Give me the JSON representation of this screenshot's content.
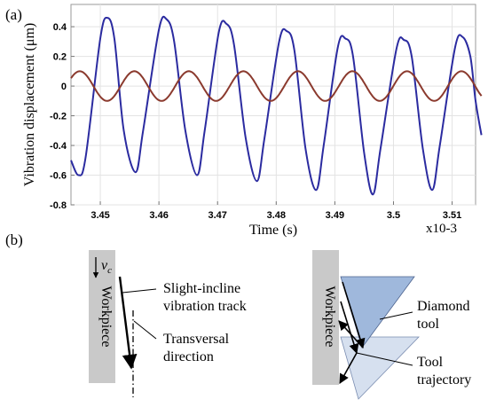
{
  "panel_a": {
    "label": "(a)"
  },
  "panel_b": {
    "label": "(b)"
  },
  "chart_data": {
    "type": "line",
    "title": "",
    "xlabel": "Time (s)",
    "ylabel": "Vibration displacement (μm)",
    "x_multiplier": "x10-3",
    "xlim": [
      3.445,
      3.514
    ],
    "ylim": [
      -0.8,
      0.55
    ],
    "grid": true,
    "xticks": [
      3.45,
      3.46,
      3.47,
      3.48,
      3.49,
      3.5,
      3.51
    ],
    "xtick_labels": [
      "3.45",
      "3.46",
      "3.47",
      "3.48",
      "3.49",
      "3.5",
      "3.51"
    ],
    "yticks": [
      0.4,
      0.2,
      0,
      -0.2,
      -0.4,
      -0.6,
      -0.8
    ],
    "ytick_labels": [
      "0.4",
      "0.2",
      "0",
      "-0.2",
      "-0.4",
      "-0.6",
      "-0.8"
    ],
    "series": [
      {
        "color": "#2b2ba0",
        "points": [
          [
            3.445,
            -0.5
          ],
          [
            3.4463,
            -0.6
          ],
          [
            3.4475,
            -0.48
          ],
          [
            3.45,
            0.32
          ],
          [
            3.4512,
            0.46
          ],
          [
            3.4524,
            0.32
          ],
          [
            3.454,
            -0.3
          ],
          [
            3.456,
            -0.58
          ],
          [
            3.4573,
            -0.3
          ],
          [
            3.46,
            0.38
          ],
          [
            3.4613,
            0.45
          ],
          [
            3.4626,
            0.3
          ],
          [
            3.4645,
            -0.3
          ],
          [
            3.4665,
            -0.6
          ],
          [
            3.4678,
            -0.3
          ],
          [
            3.4702,
            0.36
          ],
          [
            3.4715,
            0.42
          ],
          [
            3.4728,
            0.28
          ],
          [
            3.4748,
            -0.35
          ],
          [
            3.4767,
            -0.64
          ],
          [
            3.478,
            -0.35
          ],
          [
            3.4805,
            0.3
          ],
          [
            3.4818,
            0.37
          ],
          [
            3.4831,
            0.24
          ],
          [
            3.485,
            -0.42
          ],
          [
            3.4868,
            -0.7
          ],
          [
            3.4881,
            -0.4
          ],
          [
            3.4905,
            0.26
          ],
          [
            3.4918,
            0.32
          ],
          [
            3.4931,
            0.2
          ],
          [
            3.495,
            -0.45
          ],
          [
            3.4965,
            -0.73
          ],
          [
            3.4978,
            -0.42
          ],
          [
            3.5005,
            0.25
          ],
          [
            3.5018,
            0.31
          ],
          [
            3.5031,
            0.2
          ],
          [
            3.505,
            -0.42
          ],
          [
            3.5066,
            -0.7
          ],
          [
            3.5079,
            -0.4
          ],
          [
            3.5105,
            0.26
          ],
          [
            3.5118,
            0.33
          ],
          [
            3.5131,
            0.2
          ],
          [
            3.514,
            -0.1
          ],
          [
            3.515,
            -0.33
          ]
        ]
      },
      {
        "color": "#8b3a2e",
        "amplitude": 0.1,
        "period": 0.0093,
        "phase_peak_x": 3.4465,
        "x_start": 3.445,
        "x_end": 3.515
      }
    ]
  },
  "diagram_left": {
    "velocity_symbol": "v",
    "velocity_subscript": "c",
    "workpiece_label": "Workpiece",
    "track_label_line1": "Slight-incline",
    "track_label_line2": "vibration track",
    "direction_label_line1": "Transversal",
    "direction_label_line2": "direction"
  },
  "diagram_right": {
    "workpiece_label": "Workpiece",
    "tool_label_line1": "Diamond",
    "tool_label_line2": "tool",
    "trajectory_label_line1": "Tool",
    "trajectory_label_line2": "trajectory"
  },
  "colors": {
    "workpiece_fill": "#c9c9c9",
    "tool_fill": "#9fb8dc",
    "tool_ghost_fill": "#d6e0ef",
    "grid": "#e3e3e3"
  }
}
